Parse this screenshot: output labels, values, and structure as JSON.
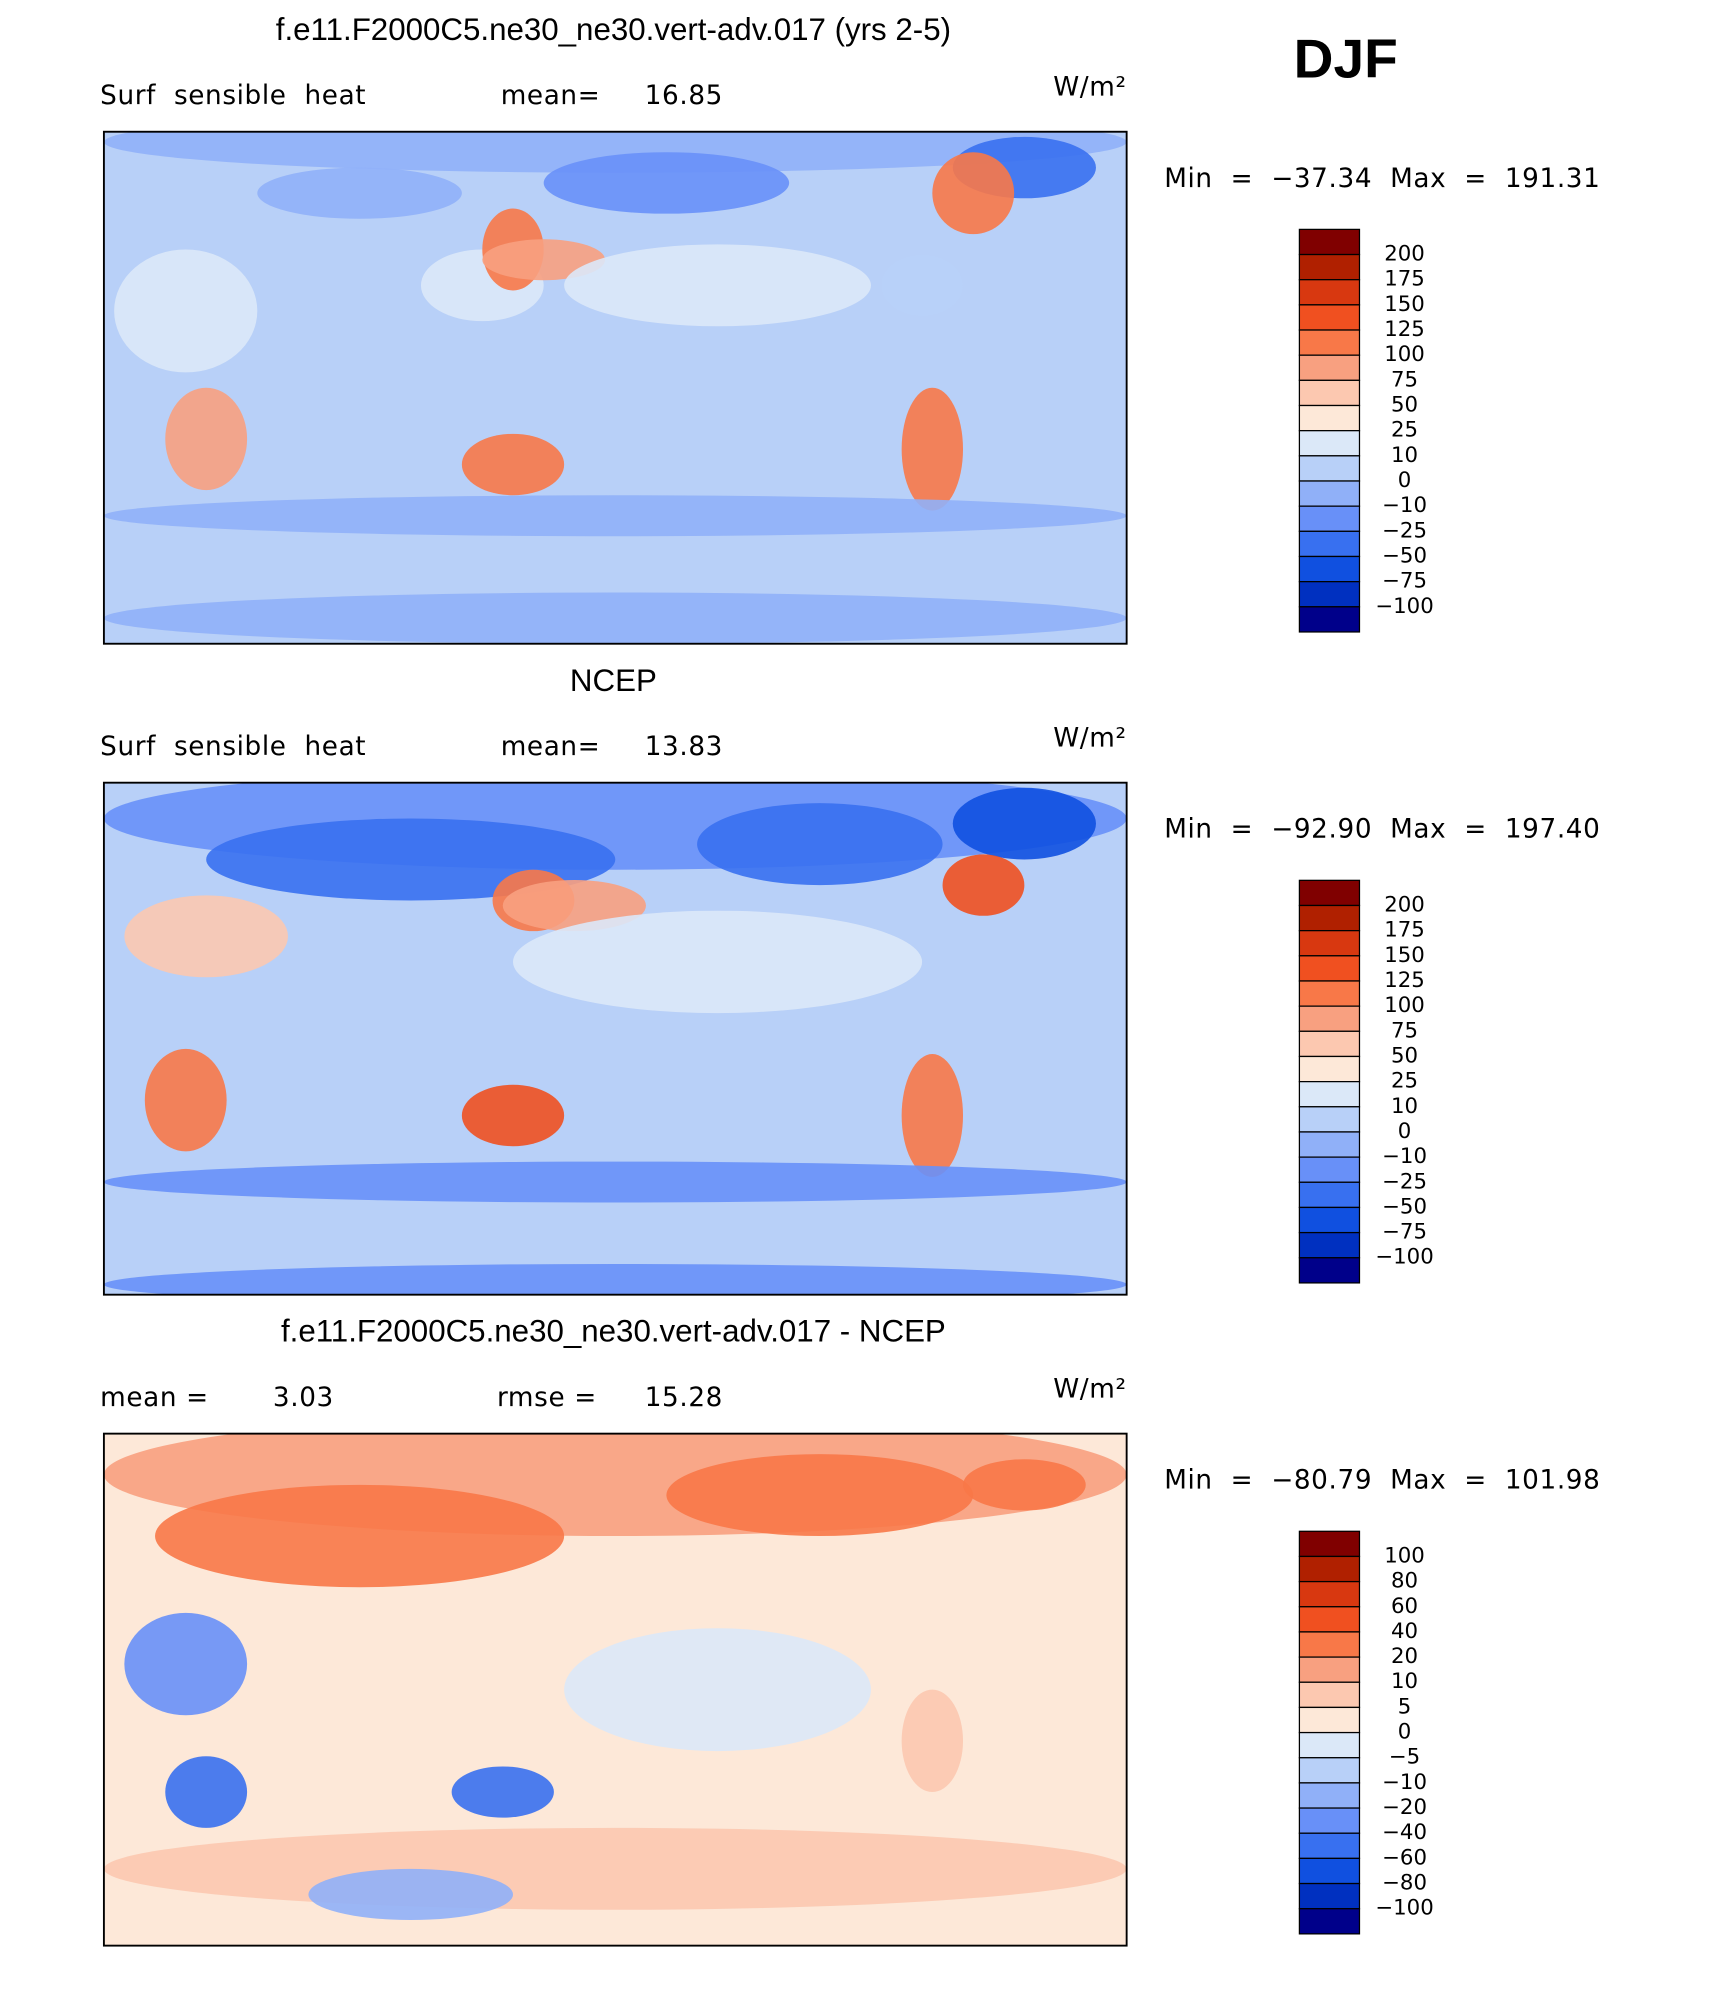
{
  "season": "DJF",
  "panels": [
    {
      "title": "f.e11.F2000C5.ne30_ne30.vert-adv.017 (yrs 2-5)",
      "left_label": "Surf  sensible  heat",
      "mid_label": "mean=",
      "mid_value": "16.85",
      "units": "W/m²",
      "stats": "Min  =  −37.34  Max  =  191.31",
      "colorbar": {
        "labels": [
          "200",
          "175",
          "150",
          "125",
          "100",
          "75",
          "50",
          "25",
          "10",
          "0",
          "−10",
          "−25",
          "−50",
          "−75",
          "−100"
        ],
        "colors": [
          "#800000",
          "#b02000",
          "#d83810",
          "#f05020",
          "#f87848",
          "#f8a080",
          "#fcc8b0",
          "#fde8d8",
          "#dbe8f8",
          "#b8d0f8",
          "#90b0f8",
          "#6890f8",
          "#3870f0",
          "#1050e0",
          "#0030c0",
          "#00008a"
        ]
      }
    },
    {
      "title": "NCEP",
      "left_label": "Surf  sensible  heat",
      "mid_label": "mean=",
      "mid_value": "13.83",
      "units": "W/m²",
      "stats": "Min  =  −92.90  Max  =  197.40",
      "colorbar": {
        "labels": [
          "200",
          "175",
          "150",
          "125",
          "100",
          "75",
          "50",
          "25",
          "10",
          "0",
          "−10",
          "−25",
          "−50",
          "−75",
          "−100"
        ],
        "colors": [
          "#800000",
          "#b02000",
          "#d83810",
          "#f05020",
          "#f87848",
          "#f8a080",
          "#fcc8b0",
          "#fde8d8",
          "#dbe8f8",
          "#b8d0f8",
          "#90b0f8",
          "#6890f8",
          "#3870f0",
          "#1050e0",
          "#0030c0",
          "#00008a"
        ]
      }
    },
    {
      "title": "f.e11.F2000C5.ne30_ne30.vert-adv.017 - NCEP",
      "left_label": "mean =",
      "left_value": "3.03",
      "mid_label": "rmse =",
      "mid_value": "15.28",
      "units": "W/m²",
      "stats": "Min  =  −80.79  Max  =  101.98",
      "colorbar": {
        "labels": [
          "100",
          "80",
          "60",
          "40",
          "20",
          "10",
          "5",
          "0",
          "−5",
          "−10",
          "−20",
          "−40",
          "−60",
          "−80",
          "−100"
        ],
        "colors": [
          "#800000",
          "#b02000",
          "#d83810",
          "#f05020",
          "#f87848",
          "#f8a080",
          "#fcc8b0",
          "#fde8d8",
          "#dbe8f8",
          "#b8d0f8",
          "#90b0f8",
          "#6890f8",
          "#3870f0",
          "#1050e0",
          "#0030c0",
          "#00008a"
        ]
      }
    }
  ]
}
